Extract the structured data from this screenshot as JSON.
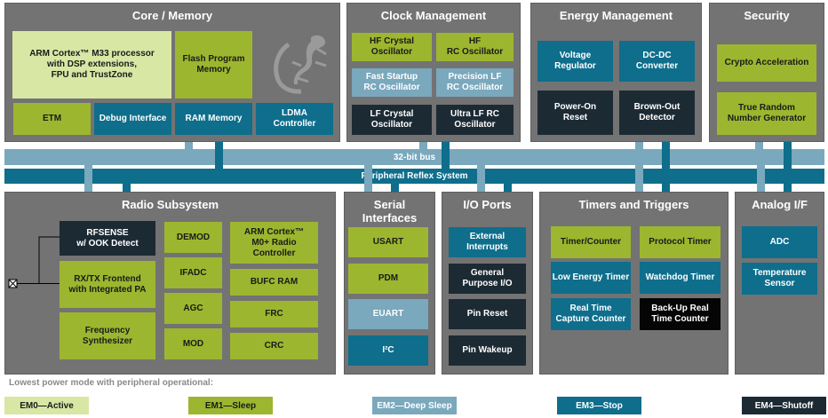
{
  "colors": {
    "em0": "#d8e7a4",
    "em1": "#9db62f",
    "em2": "#7aa8bd",
    "em3": "#0e6e8c",
    "em4": "#1c2a34",
    "backup": "#050505",
    "panel": "#737373"
  },
  "panels": [
    {
      "title": "Core / Memory",
      "blocks": [
        {
          "label": "ARM Cortex™ M33 processor\nwith DSP extensions,\nFPU and TrustZone",
          "mode": "m0"
        },
        {
          "label": "Flash Program\nMemory",
          "mode": "m1"
        },
        {
          "label": "ETM",
          "mode": "m1"
        },
        {
          "label": "Debug Interface",
          "mode": "m3"
        },
        {
          "label": "RAM Memory",
          "mode": "m3"
        },
        {
          "label": "LDMA\nController",
          "mode": "m3"
        }
      ]
    },
    {
      "title": "Clock Management",
      "blocks": [
        {
          "label": "HF Crystal\nOscillator",
          "mode": "m1"
        },
        {
          "label": "HF\nRC Oscillator",
          "mode": "m1"
        },
        {
          "label": "Fast Startup\nRC Oscillator",
          "mode": "m2"
        },
        {
          "label": "Precision LF\nRC Oscillator",
          "mode": "m2"
        },
        {
          "label": "LF Crystal\nOscillator",
          "mode": "m4"
        },
        {
          "label": "Ultra LF RC\nOscillator",
          "mode": "m4"
        }
      ]
    },
    {
      "title": "Energy Management",
      "blocks": [
        {
          "label": "Voltage\nRegulator",
          "mode": "m3"
        },
        {
          "label": "DC-DC\nConverter",
          "mode": "m3"
        },
        {
          "label": "Power-On\nReset",
          "mode": "m4"
        },
        {
          "label": "Brown-Out\nDetector",
          "mode": "m4"
        }
      ]
    },
    {
      "title": "Security",
      "blocks": [
        {
          "label": "Crypto Acceleration",
          "mode": "m1"
        },
        {
          "label": "True Random\nNumber Generator",
          "mode": "m1"
        }
      ]
    },
    {
      "title": "Radio Subsystem",
      "blocks": [
        {
          "label": "RFSENSE\nw/ OOK Detect",
          "mode": "m4"
        },
        {
          "label": "RX/TX Frontend\nwith Integrated PA",
          "mode": "m1"
        },
        {
          "label": "Frequency\nSynthesizer",
          "mode": "m1"
        },
        {
          "label": "DEMOD",
          "mode": "m1"
        },
        {
          "label": "IFADC",
          "mode": "m1"
        },
        {
          "label": "AGC",
          "mode": "m1"
        },
        {
          "label": "MOD",
          "mode": "m1"
        },
        {
          "label": "ARM Cortex™\nM0+ Radio\nController",
          "mode": "m1"
        },
        {
          "label": "BUFC RAM",
          "mode": "m1"
        },
        {
          "label": "FRC",
          "mode": "m1"
        },
        {
          "label": "CRC",
          "mode": "m1"
        }
      ]
    },
    {
      "title": "Serial\nInterfaces",
      "blocks": [
        {
          "label": "USART",
          "mode": "m1"
        },
        {
          "label": "PDM",
          "mode": "m1"
        },
        {
          "label": "EUART",
          "mode": "m2"
        },
        {
          "label": "I²C",
          "mode": "m3"
        }
      ]
    },
    {
      "title": "I/O Ports",
      "blocks": [
        {
          "label": "External\nInterrupts",
          "mode": "m3"
        },
        {
          "label": "General\nPurpose I/O",
          "mode": "m4"
        },
        {
          "label": "Pin Reset",
          "mode": "m4"
        },
        {
          "label": "Pin Wakeup",
          "mode": "m4"
        }
      ]
    },
    {
      "title": "Timers and Triggers",
      "blocks": [
        {
          "label": "Timer/Counter",
          "mode": "m1"
        },
        {
          "label": "Protocol Timer",
          "mode": "m1"
        },
        {
          "label": "Low Energy Timer",
          "mode": "m3"
        },
        {
          "label": "Watchdog Timer",
          "mode": "m3"
        },
        {
          "label": "Real Time\nCapture Counter",
          "mode": "m3"
        },
        {
          "label": "Back-Up Real\nTime Counter",
          "mode": "m5"
        }
      ]
    },
    {
      "title": "Analog I/F",
      "blocks": [
        {
          "label": "ADC",
          "mode": "m3"
        },
        {
          "label": "Temperature\nSensor",
          "mode": "m3"
        }
      ]
    }
  ],
  "buses": {
    "bus32": "32-bit bus",
    "prs": "Peripheral Reflex System"
  },
  "legend": {
    "title": "Lowest power mode with peripheral operational:",
    "items": [
      {
        "label": "EM0—Active",
        "mode": "m0"
      },
      {
        "label": "EM1—Sleep",
        "mode": "m1"
      },
      {
        "label": "EM2—Deep Sleep",
        "mode": "m2"
      },
      {
        "label": "EM3—Stop",
        "mode": "m3"
      },
      {
        "label": "EM4—Shutoff",
        "mode": "m4"
      }
    ]
  }
}
